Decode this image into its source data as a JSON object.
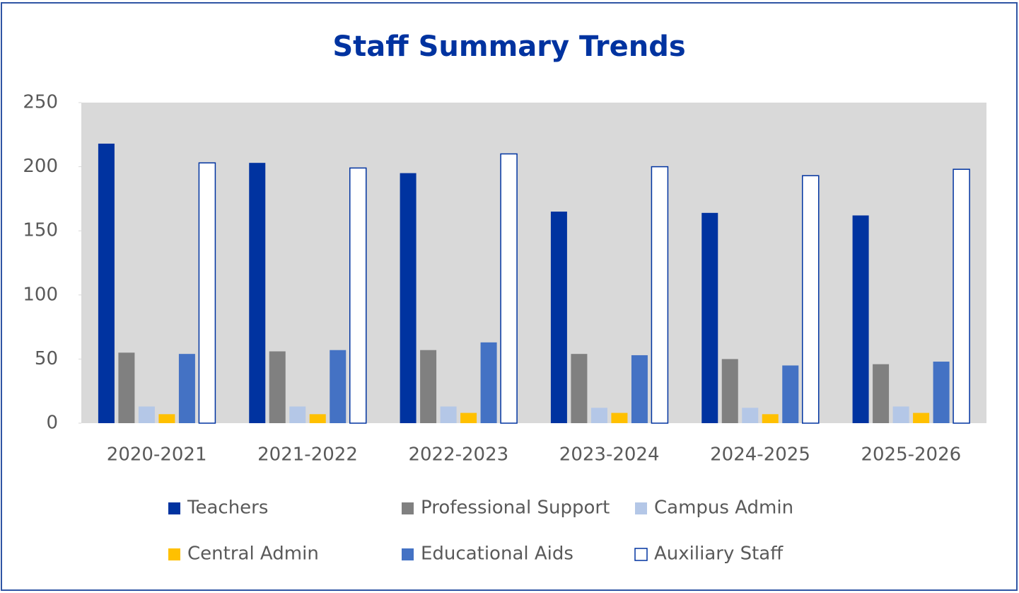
{
  "chart_data": {
    "type": "bar",
    "title": "Staff Summary Trends",
    "categories": [
      "2020-2021",
      "2021-2022",
      "2022-2023",
      "2023-2024",
      "2024-2025",
      "2025-2026"
    ],
    "series": [
      {
        "name": "Teachers",
        "color": "#0033a0",
        "values": [
          218,
          203,
          195,
          165,
          164,
          162
        ]
      },
      {
        "name": "Professional Support",
        "color": "#808080",
        "values": [
          55,
          56,
          57,
          54,
          50,
          46
        ]
      },
      {
        "name": "Campus Admin",
        "color": "#b4c7e7",
        "values": [
          13,
          13,
          13,
          12,
          12,
          13
        ]
      },
      {
        "name": "Central Admin",
        "color": "#ffc000",
        "values": [
          7,
          7,
          8,
          8,
          7,
          8
        ]
      },
      {
        "name": "Educational Aids",
        "color": "#4472c4",
        "values": [
          54,
          57,
          63,
          53,
          45,
          48
        ]
      },
      {
        "name": "Auxiliary Staff",
        "color": "#ffffff",
        "values": [
          203,
          199,
          210,
          200,
          193,
          198
        ]
      }
    ],
    "ylim": [
      0,
      250
    ],
    "yticks": [
      0,
      50,
      100,
      150,
      200,
      250
    ]
  }
}
